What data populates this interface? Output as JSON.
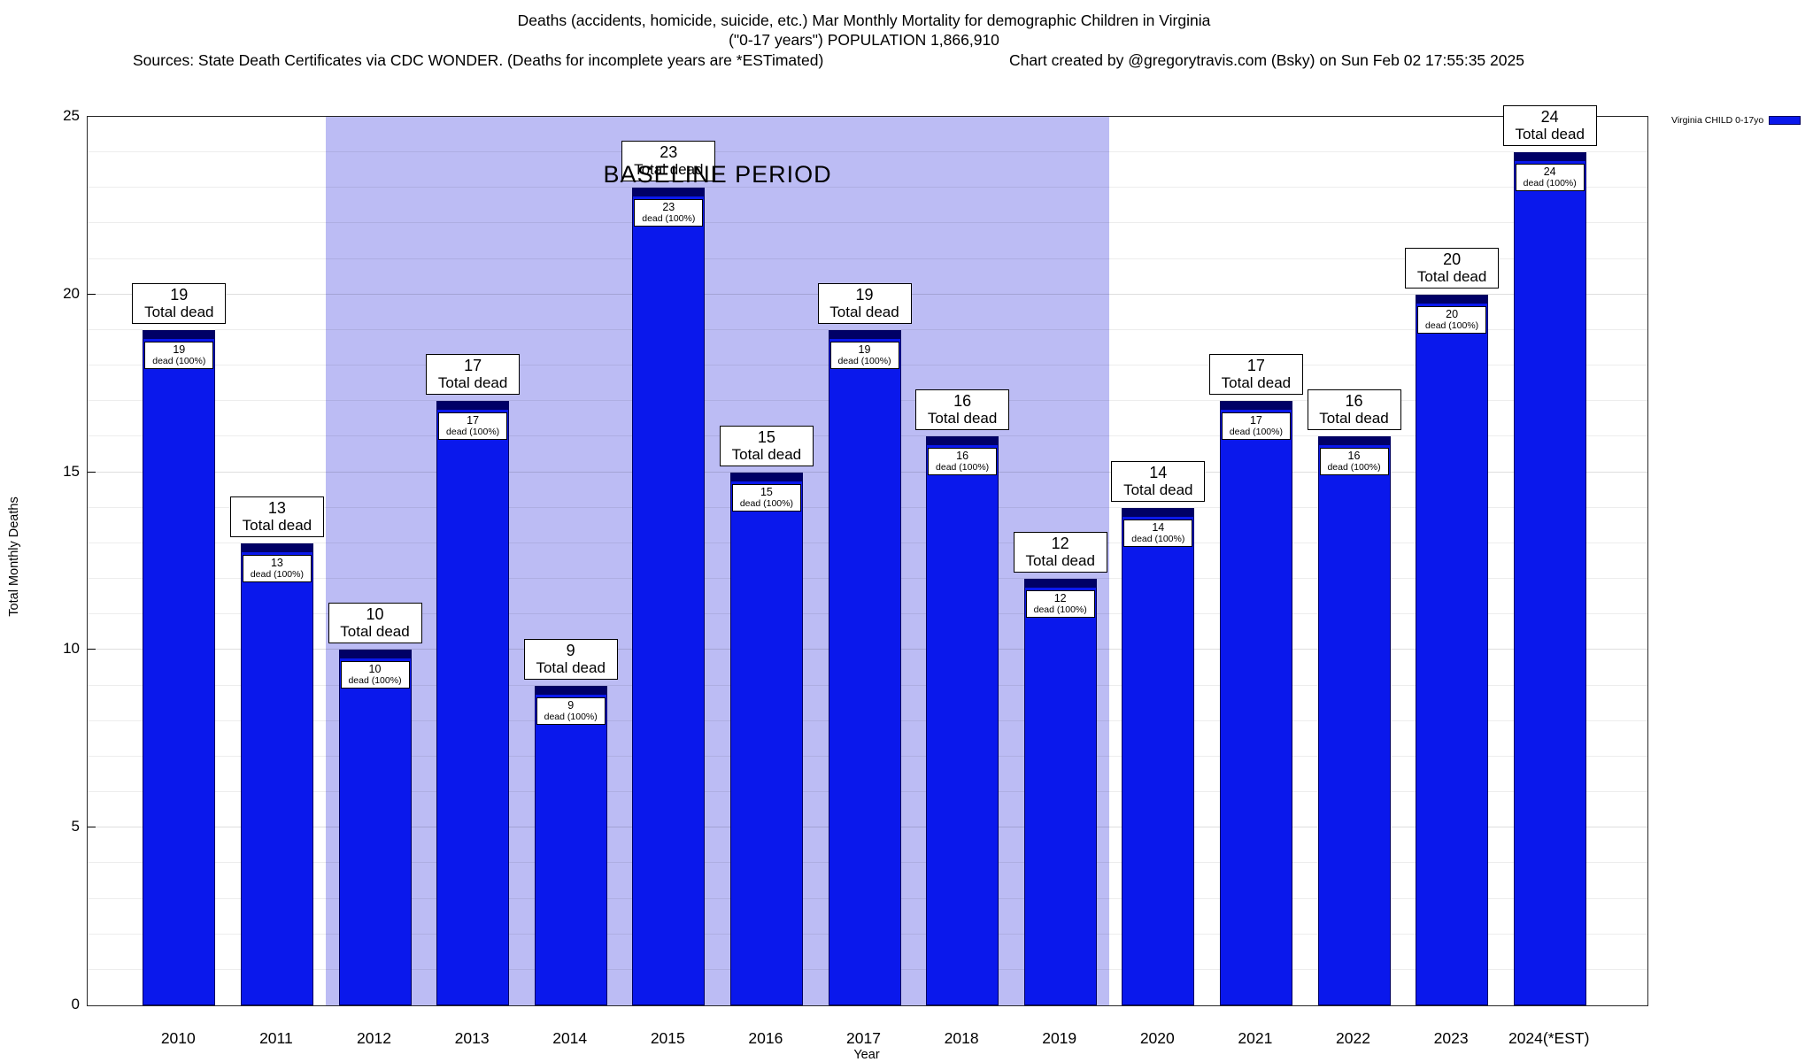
{
  "header": {
    "title_line1": "Deaths (accidents, homicide, suicide, etc.) Mar Monthly Mortality for demographic Children in Virginia",
    "title_line2": "(\"0-17 years\") POPULATION 1,866,910",
    "sources": "Sources: State Death Certificates via CDC WONDER. (Deaths for incomplete years are *ESTimated)",
    "credit": "Chart created by @gregorytravis.com (Bsky) on Sun Feb 02 17:55:35 2025"
  },
  "chart_data": {
    "type": "bar",
    "title": "Deaths (accidents, homicide, suicide, etc.) Mar Monthly Mortality for demographic Children in Virginia (\"0-17 years\") POPULATION 1,866,910",
    "categories": [
      "2010",
      "2011",
      "2012",
      "2013",
      "2014",
      "2015",
      "2016",
      "2017",
      "2018",
      "2019",
      "2020",
      "2021",
      "2022",
      "2023",
      "2024(*EST)"
    ],
    "values": [
      19,
      13,
      10,
      17,
      9,
      23,
      15,
      19,
      16,
      12,
      14,
      17,
      16,
      20,
      24
    ],
    "xlabel": "Year",
    "ylabel": "Total Monthly Deaths",
    "ylim": [
      0,
      25
    ],
    "yticks": [
      0,
      5,
      10,
      15,
      20,
      25
    ],
    "grid": "minor horizontal every 1 unit",
    "legend": {
      "label": "Virginia CHILD 0-17yo",
      "color": "#0a18ec",
      "position": "top-right-outside"
    },
    "bar_color": "#0a18ec",
    "bar_cap_color": "#000066",
    "bar_top_label_suffix": "Total dead",
    "bar_inner_label_suffix": "dead (100%)",
    "baseline_period": {
      "label": "BASELINE PERIOD",
      "start_index": 2,
      "end_index": 9,
      "start_year": "2012",
      "end_year": "2019",
      "color": "#bcbcf4"
    }
  }
}
